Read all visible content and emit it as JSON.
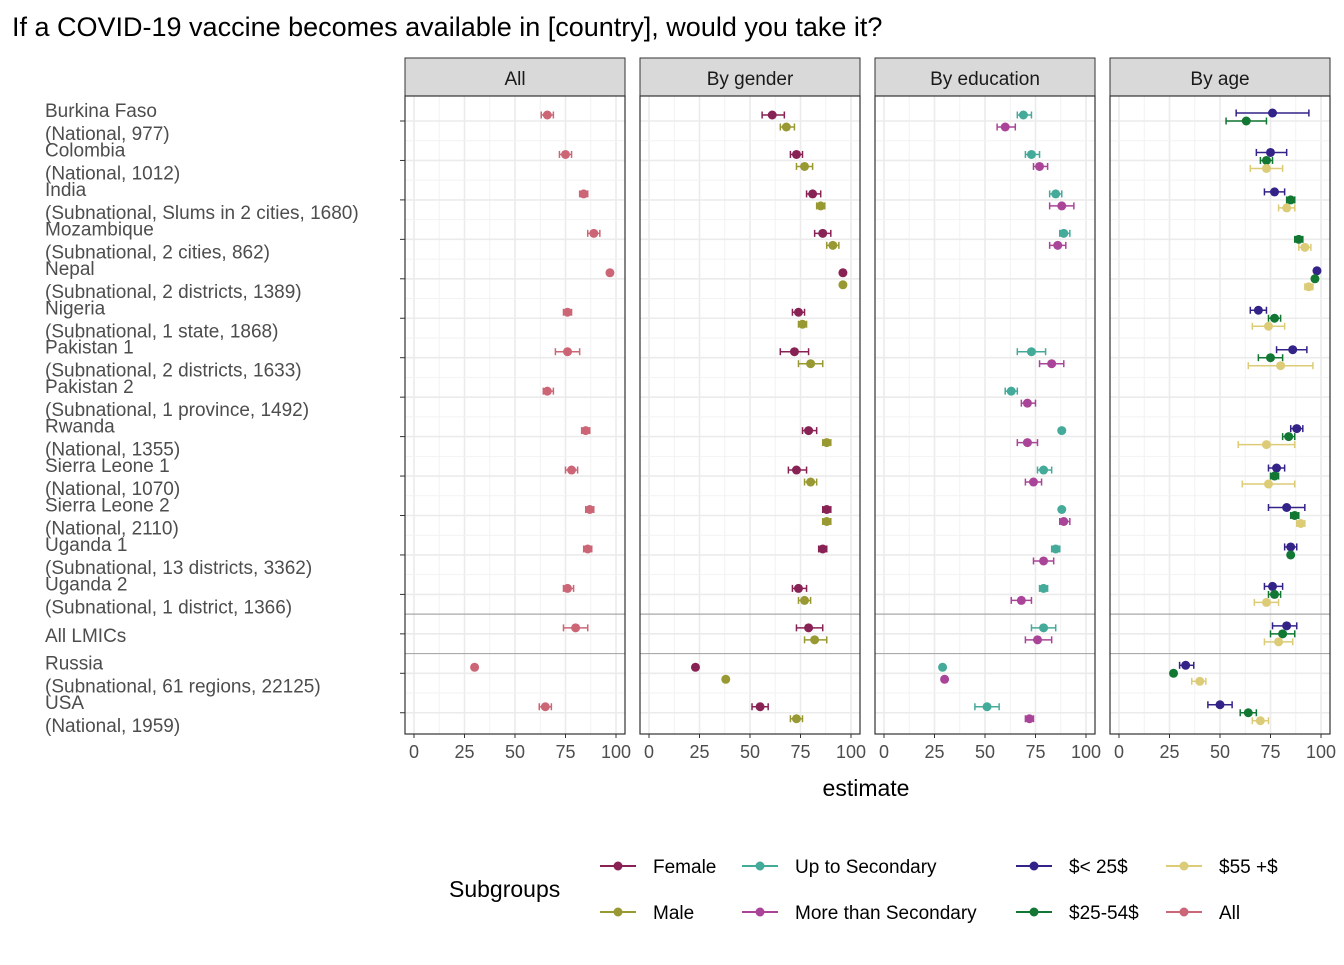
{
  "chart_data": {
    "type": "scatter",
    "title": "If a COVID-19 vaccine becomes available in [country], would you take it?",
    "xlabel": "estimate",
    "ylabel": "",
    "xlim": [
      0,
      100
    ],
    "x_ticks": [
      "0",
      "25",
      "50",
      "75",
      "100"
    ],
    "grid": true,
    "legend_title": "Subgroups",
    "legend_position": "bottom",
    "panels": [
      "All",
      "By gender",
      "By education",
      "By age"
    ],
    "rows": [
      {
        "line1": "Burkina Faso",
        "line2": "(National, 977)"
      },
      {
        "line1": "Colombia",
        "line2": "(National, 1012)"
      },
      {
        "line1": "India",
        "line2": "(Subnational, Slums in 2 cities, 1680)"
      },
      {
        "line1": "Mozambique",
        "line2": "(Subnational, 2 cities, 862)"
      },
      {
        "line1": "Nepal",
        "line2": "(Subnational, 2 districts, 1389)"
      },
      {
        "line1": "Nigeria",
        "line2": "(Subnational, 1 state, 1868)"
      },
      {
        "line1": "Pakistan 1",
        "line2": "(Subnational, 2 districts, 1633)"
      },
      {
        "line1": "Pakistan 2",
        "line2": "(Subnational, 1 province, 1492)"
      },
      {
        "line1": "Rwanda",
        "line2": "(National, 1355)"
      },
      {
        "line1": "Sierra Leone 1",
        "line2": "(National, 1070)"
      },
      {
        "line1": "Sierra Leone 2",
        "line2": "(National, 2110)"
      },
      {
        "line1": "Uganda 1",
        "line2": "(Subnational, 13 districts, 3362)"
      },
      {
        "line1": "Uganda 2",
        "line2": "(Subnational, 1 district, 1366)"
      },
      {
        "line1": "All LMICs",
        "line2": ""
      },
      {
        "line1": "Russia",
        "line2": "(Subnational, 61 regions, 22125)"
      },
      {
        "line1": "USA",
        "line2": "(National, 1959)"
      }
    ],
    "separator_after_rows": [
      12,
      13
    ],
    "series": [
      {
        "name": "All",
        "panel": 0,
        "color": "#CC6677",
        "values": [
          66,
          75,
          84,
          89,
          97,
          76,
          76,
          66,
          85,
          78,
          87,
          86,
          76,
          80,
          30,
          65
        ],
        "ci": [
          [
            63,
            69
          ],
          [
            72,
            78
          ],
          [
            82,
            86
          ],
          [
            86,
            92
          ],
          [
            96,
            98
          ],
          [
            74,
            78
          ],
          [
            70,
            82
          ],
          [
            64,
            69
          ],
          [
            83,
            87
          ],
          [
            75,
            81
          ],
          [
            85,
            89
          ],
          [
            84,
            88
          ],
          [
            74,
            79
          ],
          [
            74,
            86
          ],
          [
            29,
            31
          ],
          [
            62,
            68
          ]
        ]
      },
      {
        "name": "Female",
        "panel": 1,
        "color": "#882255",
        "values": [
          61,
          73,
          81,
          86,
          96,
          74,
          72,
          null,
          79,
          73,
          88,
          86,
          74,
          79,
          23,
          55
        ],
        "ci": [
          [
            56,
            67
          ],
          [
            70,
            76
          ],
          [
            78,
            85
          ],
          [
            82,
            90
          ],
          [
            95,
            97
          ],
          [
            71,
            77
          ],
          [
            65,
            79
          ],
          null,
          [
            76,
            83
          ],
          [
            69,
            78
          ],
          [
            86,
            90
          ],
          [
            84,
            88
          ],
          [
            71,
            78
          ],
          [
            73,
            86
          ],
          [
            22,
            24
          ],
          [
            51,
            59
          ]
        ]
      },
      {
        "name": "Male",
        "panel": 1,
        "color": "#999933",
        "values": [
          68,
          77,
          85,
          91,
          96,
          76,
          80,
          null,
          88,
          80,
          88,
          null,
          77,
          82,
          38,
          73
        ],
        "ci": [
          [
            65,
            72
          ],
          [
            73,
            81
          ],
          [
            83,
            87
          ],
          [
            88,
            94
          ],
          [
            95,
            97
          ],
          [
            74,
            78
          ],
          [
            74,
            86
          ],
          null,
          [
            86,
            90
          ],
          [
            77,
            83
          ],
          [
            86,
            90
          ],
          null,
          [
            74,
            80
          ],
          [
            77,
            88
          ],
          [
            37,
            39
          ],
          [
            70,
            76
          ]
        ]
      },
      {
        "name": "Up to Secondary",
        "panel": 2,
        "color": "#44AA99",
        "values": [
          69,
          73,
          85,
          89,
          null,
          null,
          73,
          63,
          88,
          79,
          88,
          85,
          79,
          79,
          29,
          51
        ],
        "ci": [
          [
            66,
            73
          ],
          [
            70,
            77
          ],
          [
            82,
            88
          ],
          [
            87,
            92
          ],
          null,
          null,
          [
            66,
            80
          ],
          [
            60,
            66
          ],
          [
            87,
            89
          ],
          [
            76,
            83
          ],
          [
            87,
            89
          ],
          [
            83,
            87
          ],
          [
            77,
            81
          ],
          [
            73,
            85
          ],
          [
            28,
            30
          ],
          [
            45,
            57
          ]
        ]
      },
      {
        "name": "More than Secondary",
        "panel": 2,
        "color": "#AA4499",
        "values": [
          60,
          77,
          88,
          86,
          null,
          null,
          83,
          71,
          71,
          74,
          89,
          79,
          68,
          76,
          30,
          72
        ],
        "ci": [
          [
            56,
            65
          ],
          [
            74,
            81
          ],
          [
            82,
            94
          ],
          [
            82,
            90
          ],
          null,
          null,
          [
            77,
            89
          ],
          [
            68,
            75
          ],
          [
            66,
            76
          ],
          [
            70,
            78
          ],
          [
            87,
            92
          ],
          [
            74,
            84
          ],
          [
            63,
            73
          ],
          [
            70,
            83
          ],
          [
            29,
            31
          ],
          [
            70,
            74
          ]
        ]
      },
      {
        "name": "$< 25$",
        "panel": 3,
        "color": "#332288",
        "values": [
          76,
          75,
          77,
          null,
          98,
          69,
          86,
          null,
          88,
          78,
          83,
          85,
          76,
          83,
          33,
          50
        ],
        "ci": [
          [
            58,
            94
          ],
          [
            68,
            83
          ],
          [
            72,
            82
          ],
          null,
          [
            97,
            99
          ],
          [
            65,
            73
          ],
          [
            78,
            93
          ],
          null,
          [
            85,
            91
          ],
          [
            74,
            82
          ],
          [
            74,
            92
          ],
          [
            82,
            88
          ],
          [
            72,
            81
          ],
          [
            76,
            88
          ],
          [
            30,
            37
          ],
          [
            44,
            56
          ]
        ]
      },
      {
        "name": "$25-54$",
        "panel": 3,
        "color": "#117733",
        "values": [
          63,
          73,
          85,
          89,
          97,
          77,
          75,
          null,
          84,
          77,
          87,
          85,
          77,
          81,
          27,
          64
        ],
        "ci": [
          [
            53,
            73
          ],
          [
            70,
            76
          ],
          [
            83,
            87
          ],
          [
            87,
            91
          ],
          [
            96,
            98
          ],
          [
            74,
            80
          ],
          [
            69,
            81
          ],
          null,
          [
            81,
            87
          ],
          [
            75,
            79
          ],
          [
            85,
            89
          ],
          [
            84,
            86
          ],
          [
            74,
            80
          ],
          [
            75,
            87
          ],
          [
            26,
            28
          ],
          [
            60,
            68
          ]
        ]
      },
      {
        "name": "$55 +$",
        "panel": 3,
        "color": "#DDCC77",
        "values": [
          null,
          73,
          83,
          92,
          94,
          74,
          80,
          null,
          73,
          74,
          90,
          null,
          73,
          79,
          40,
          70
        ],
        "ci": [
          null,
          [
            65,
            81
          ],
          [
            79,
            87
          ],
          [
            89,
            95
          ],
          [
            92,
            96
          ],
          [
            66,
            82
          ],
          [
            64,
            96
          ],
          null,
          [
            59,
            87
          ],
          [
            61,
            87
          ],
          [
            88,
            92
          ],
          null,
          [
            67,
            79
          ],
          [
            72,
            86
          ],
          [
            36,
            43
          ],
          [
            66,
            74
          ]
        ]
      }
    ]
  },
  "legend": {
    "title": "Subgroups",
    "items": [
      {
        "label": "Female",
        "color": "#882255"
      },
      {
        "label": "Male",
        "color": "#999933"
      },
      {
        "label": "Up to Secondary",
        "color": "#44AA99"
      },
      {
        "label": "More than Secondary",
        "color": "#AA4499"
      },
      {
        "label": "$< 25$",
        "color": "#332288"
      },
      {
        "label": "$25-54$",
        "color": "#117733"
      },
      {
        "label": "$55 +$",
        "color": "#DDCC77"
      },
      {
        "label": "All",
        "color": "#CC6677"
      }
    ]
  }
}
